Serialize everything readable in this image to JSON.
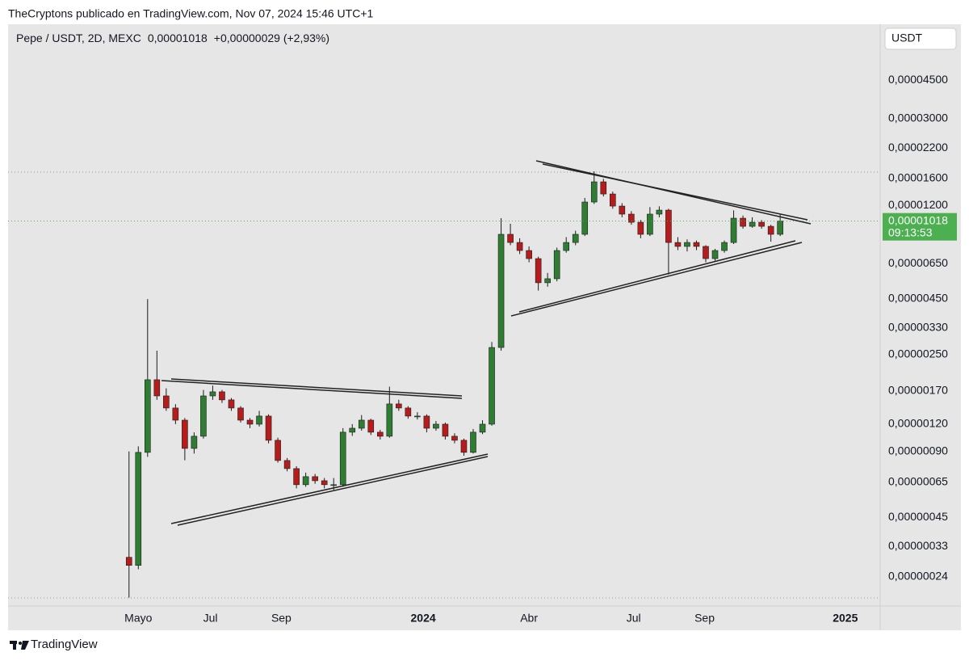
{
  "header": {
    "publisher": "TheCryptons publicado en TradingView.com, Nov 07, 2024 15:46 UTC+1",
    "currency_button": "USDT",
    "footer_brand": "TradingView"
  },
  "chart_data": {
    "type": "candlestick",
    "title": "Pepe / USDT, 2D, MEXC",
    "last_price_label": "0,00001018",
    "change_label": "+0,00000029 (+2,93%)",
    "countdown": "09:13:53",
    "log_scale": true,
    "grid": false,
    "up_color": "#2e7d32",
    "down_color": "#b71c1c",
    "wick_color": "#1b1b1b",
    "price_line_color": "#4caf50",
    "x": [
      0,
      8,
      16,
      24,
      32,
      40,
      48,
      56,
      64,
      72,
      80,
      88,
      96,
      104,
      112,
      120,
      128,
      136,
      144,
      152,
      160,
      168,
      176,
      184,
      192,
      200,
      208,
      216,
      224,
      232,
      240,
      248,
      256,
      264,
      272,
      280,
      288,
      296,
      304,
      312,
      320,
      328,
      336,
      344,
      352,
      360,
      368,
      376,
      384,
      392,
      400,
      408,
      416,
      424,
      432,
      440,
      448,
      456,
      464,
      472,
      480,
      488,
      496,
      504,
      512,
      520,
      528,
      536,
      544,
      552,
      560
    ],
    "open": [
      2.95e-07,
      2.71e-07,
      8.91e-07,
      1.915e-06,
      1.615e-06,
      1.422e-06,
      1.251e-06,
      9.29e-07,
      1.056e-06,
      1.615e-06,
      1.686e-06,
      1.549e-06,
      1.422e-06,
      1.251e-06,
      1.199e-06,
      1.306e-06,
      1.012e-06,
      8.18e-07,
      7.51e-07,
      6.34e-07,
      6.9e-07,
      6.61e-07,
      6.34e-07,
      6.34e-07,
      1.102e-06,
      1.149e-06,
      1.251e-06,
      1.102e-06,
      1.056e-06,
      1.484e-06,
      1.422e-06,
      1.306e-06,
      1.306e-06,
      1.149e-06,
      1.199e-06,
      1.056e-06,
      1.012e-06,
      8.91e-07,
      1.102e-06,
      1.199e-06,
      2.69e-06,
      8.86e-06,
      8.13e-06,
      7.47e-06,
      6.86e-06,
      5.32e-06,
      5.55e-06,
      7.47e-06,
      8.13e-06,
      8.86e-06,
      1.245e-05,
      1.54e-05,
      1.355e-05,
      1.193e-05,
      1.096e-05,
      1.006e-05,
      8.86e-06,
      1.096e-05,
      1.143e-05,
      8.13e-06,
      7.8e-06,
      8.13e-06,
      7.8e-06,
      6.86e-06,
      7.47e-06,
      8.13e-06,
      1.05e-05,
      9.64e-06,
      1.006e-05,
      9.64e-06,
      8.86e-06
    ],
    "high": [
      9e-07,
      9.5e-07,
      4.48e-06,
      2.6e-06,
      1.75e-06,
      1.48e-06,
      1.28e-06,
      1.1e-06,
      1.72e-06,
      1.8e-06,
      1.72e-06,
      1.58e-06,
      1.45e-06,
      1.28e-06,
      1.38e-06,
      1.33e-06,
      1.04e-06,
      8.4e-07,
      7.7e-07,
      7.2e-07,
      7.1e-07,
      6.8e-07,
      6.8e-07,
      1.15e-06,
      1.2e-06,
      1.32e-06,
      1.27e-06,
      1.13e-06,
      1.78e-06,
      1.55e-06,
      1.45e-06,
      1.36e-06,
      1.33e-06,
      1.24e-06,
      1.22e-06,
      1.09e-06,
      1.03e-06,
      1.14e-06,
      1.25e-06,
      2.85e-06,
      1.05e-05,
      9.9e-06,
      8.5e-06,
      7.8e-06,
      7e-06,
      5.9e-06,
      7.7e-06,
      8.6e-06,
      9.2e-06,
      1.3e-05,
      1.72e-05,
      1.59e-05,
      1.39e-05,
      1.23e-05,
      1.13e-05,
      1.03e-05,
      1.18e-05,
      1.19e-05,
      1.16e-05,
      8.6e-06,
      8.4e-06,
      8.3e-06,
      7.9e-06,
      7.6e-06,
      8.3e-06,
      1.14e-05,
      1.08e-05,
      1.06e-05,
      1.03e-05,
      9.8e-06,
      1.09e-05
    ],
    "low": [
      1.93e-07,
      2.6e-07,
      8.5e-07,
      1.55e-06,
      1.38e-06,
      1.2e-06,
      8.2e-07,
      8.8e-07,
      1.03e-06,
      1.55e-06,
      1.5e-06,
      1.38e-06,
      1.22e-06,
      1.15e-06,
      1.17e-06,
      9.8e-07,
      8e-07,
      7.3e-07,
      6.1e-07,
      6.2e-07,
      6.4e-07,
      6.1e-07,
      6e-07,
      6.2e-07,
      1.06e-06,
      1.12e-06,
      1.07e-06,
      1.02e-06,
      1.04e-06,
      1.38e-06,
      1.27e-06,
      1.26e-06,
      1.1e-06,
      1.12e-06,
      1.02e-06,
      9.8e-07,
      8.6e-07,
      8.8e-07,
      1.08e-06,
      1.18e-06,
      2.6e-06,
      7.9e-06,
      7.2e-06,
      6.6e-06,
      4.9e-06,
      5.1e-06,
      5.4e-06,
      7.3e-06,
      7.9e-06,
      8.7e-06,
      1.22e-05,
      1.32e-05,
      1.16e-05,
      1.06e-05,
      9.8e-06,
      8.5e-06,
      8.7e-06,
      1.06e-05,
      5.8e-06,
      7.5e-06,
      7.4e-06,
      7.5e-06,
      6.6e-06,
      6.7e-06,
      7.3e-06,
      8e-06,
      9.4e-06,
      9.5e-06,
      9.4e-06,
      8.2e-06,
      8.7e-06
    ],
    "close": [
      2.71e-07,
      8.91e-07,
      1.915e-06,
      1.615e-06,
      1.422e-06,
      1.251e-06,
      9.29e-07,
      1.056e-06,
      1.615e-06,
      1.686e-06,
      1.549e-06,
      1.422e-06,
      1.251e-06,
      1.199e-06,
      1.306e-06,
      1.012e-06,
      8.18e-07,
      7.51e-07,
      6.34e-07,
      6.9e-07,
      6.61e-07,
      6.34e-07,
      6.34e-07,
      1.102e-06,
      1.149e-06,
      1.251e-06,
      1.102e-06,
      1.056e-06,
      1.484e-06,
      1.422e-06,
      1.306e-06,
      1.306e-06,
      1.149e-06,
      1.199e-06,
      1.056e-06,
      1.012e-06,
      8.91e-07,
      1.102e-06,
      1.199e-06,
      2.69e-06,
      8.86e-06,
      8.13e-06,
      7.47e-06,
      6.86e-06,
      5.32e-06,
      5.55e-06,
      7.47e-06,
      8.13e-06,
      8.86e-06,
      1.245e-05,
      1.54e-05,
      1.355e-05,
      1.193e-05,
      1.096e-05,
      1.006e-05,
      8.86e-06,
      1.096e-05,
      1.143e-05,
      8.13e-06,
      7.8e-06,
      8.13e-06,
      7.8e-06,
      6.86e-06,
      7.47e-06,
      8.13e-06,
      1.05e-05,
      9.64e-06,
      1.006e-05,
      9.64e-06,
      8.86e-06,
      1.018e-05
    ],
    "xlim": [
      -104,
      646
    ],
    "xticks": [
      {
        "value": 8,
        "label": "Mayo"
      },
      {
        "value": 70,
        "label": "Jul"
      },
      {
        "value": 131,
        "label": "Sep"
      },
      {
        "value": 253,
        "label": "2024"
      },
      {
        "value": 344,
        "label": "Abr"
      },
      {
        "value": 434,
        "label": "Jul"
      },
      {
        "value": 495,
        "label": "Sep"
      },
      {
        "value": 616,
        "label": "2025"
      }
    ],
    "ylim": [
      1.766e-07,
      8.1e-05
    ],
    "yticks": [
      {
        "value": 4.5e-05,
        "label": "0,00004500"
      },
      {
        "value": 3e-05,
        "label": "0,00003000"
      },
      {
        "value": 2.2e-05,
        "label": "0,00002200"
      },
      {
        "value": 1.6e-05,
        "label": "0,00001600"
      },
      {
        "value": 1.2e-05,
        "label": "0,00001200"
      },
      {
        "value": 6.5e-06,
        "label": "0,00000650"
      },
      {
        "value": 4.5e-06,
        "label": "0,00000450"
      },
      {
        "value": 3.3e-06,
        "label": "0,00000330"
      },
      {
        "value": 2.5e-06,
        "label": "0,00000250"
      },
      {
        "value": 1.7e-06,
        "label": "0,00000170"
      },
      {
        "value": 1.2e-06,
        "label": "0,00000120"
      },
      {
        "value": 9e-07,
        "label": "0,00000090"
      },
      {
        "value": 6.5e-07,
        "label": "0,00000065"
      },
      {
        "value": 4.5e-07,
        "label": "0,00000045"
      },
      {
        "value": 3.3e-07,
        "label": "0,00000033"
      },
      {
        "value": 2.4e-07,
        "label": "0,00000024"
      }
    ]
  }
}
